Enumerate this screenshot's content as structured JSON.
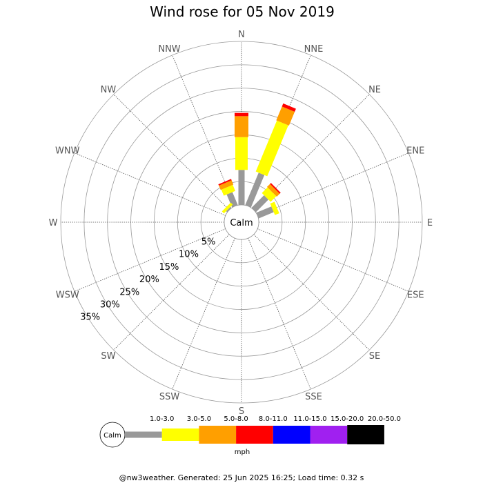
{
  "chart_data": {
    "type": "wind-rose",
    "title": "Wind rose for 05 Nov 2019",
    "directions": [
      "N",
      "NNE",
      "NE",
      "ENE",
      "E",
      "ESE",
      "SE",
      "SSE",
      "S",
      "SSW",
      "SW",
      "WSW",
      "W",
      "WNW",
      "NW",
      "NNW"
    ],
    "ring_labels": [
      "5%",
      "10%",
      "15%",
      "20%",
      "25%",
      "30%",
      "35%"
    ],
    "ring_values": [
      5,
      10,
      15,
      20,
      25,
      30,
      35
    ],
    "rmax": 35,
    "calm_label": "Calm",
    "speed_bins": [
      {
        "label": "1.0-3.0",
        "color": "#999999"
      },
      {
        "label": "3.0-5.0",
        "color": "#ffff00"
      },
      {
        "label": "5.0-8.0",
        "color": "#ff9f00"
      },
      {
        "label": "8.0-11.0",
        "color": "#ff0000"
      },
      {
        "label": "11.0-15.0",
        "color": "#0000ff"
      },
      {
        "label": "15.0-20.0",
        "color": "#a020f0"
      },
      {
        "label": "20.0-50.0",
        "color": "#000000"
      }
    ],
    "unit": "mph",
    "series": [
      {
        "direction": "N",
        "values": [
          7.5,
          7.0,
          4.5,
          0.7,
          0,
          0,
          0
        ]
      },
      {
        "direction": "NNE",
        "values": [
          7.5,
          11.8,
          3.2,
          0.7,
          0,
          0,
          0
        ]
      },
      {
        "direction": "NE",
        "values": [
          3.8,
          1.7,
          0.9,
          0.3,
          0,
          0,
          0
        ]
      },
      {
        "direction": "ENE",
        "values": [
          3.5,
          1.0,
          0,
          0,
          0,
          0,
          0
        ]
      },
      {
        "direction": "NNW",
        "values": [
          3.0,
          1.4,
          1.0,
          0.3,
          0,
          0,
          0
        ]
      },
      {
        "direction": "NW",
        "values": [
          0.3,
          0.6,
          0,
          0,
          0,
          0,
          0
        ]
      }
    ]
  },
  "footer": "@nw3weather. Generated: 25 Jun 2025 16:25; Load time: 0.32 s"
}
